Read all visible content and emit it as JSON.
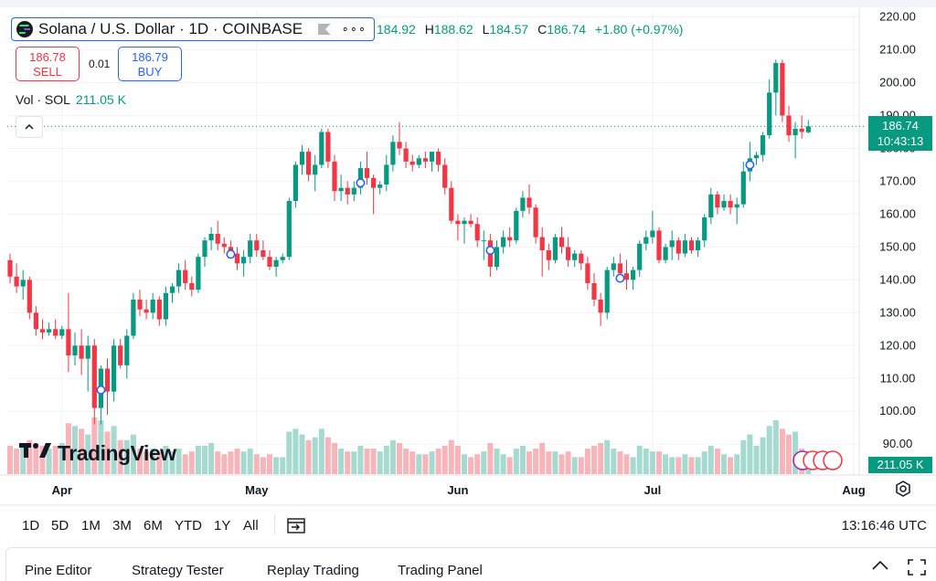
{
  "header": {
    "symbol_title": "Solana / U.S. Dollar · 1D · COINBASE",
    "more_label": "∘∘∘",
    "ohlc": {
      "o": "184.92",
      "h": "188.62",
      "l": "184.57",
      "c": "186.74",
      "change": "+1.80 (+0.97%)",
      "o_label": "",
      "h_label": "H",
      "l_label": "L",
      "c_label": "C"
    }
  },
  "trade": {
    "sell_price": "186.78",
    "sell_label": "SELL",
    "spread": "0.01",
    "buy_price": "186.79",
    "buy_label": "BUY"
  },
  "volume_legend": {
    "label": "Vol · SOL",
    "value": "211.05 K"
  },
  "price_tag": {
    "price": "186.74",
    "countdown": "10:43:13"
  },
  "volume_tag": "211.05 K",
  "brand": "TradingView",
  "range_buttons": [
    "1D",
    "5D",
    "1M",
    "3M",
    "6M",
    "YTD",
    "1Y",
    "All"
  ],
  "clock": "13:16:46 UTC",
  "bottom_tabs": [
    "Pine Editor",
    "Strategy Tester",
    "Replay Trading",
    "Trading Panel"
  ],
  "colors": {
    "up": "#089981",
    "down": "#f23645",
    "up_vol": "#a6d9cf",
    "down_vol": "#f7b5b9",
    "marker": "#2962ff"
  },
  "chart_data": {
    "type": "candlestick",
    "title": "Solana / U.S. Dollar · 1D · COINBASE",
    "ylim": [
      87,
      221
    ],
    "y_ticks": [
      90,
      100,
      110,
      120,
      130,
      140,
      150,
      160,
      170,
      180,
      190,
      200,
      210,
      220
    ],
    "y_tick_labels": [
      "90.00",
      "100.00",
      "110.00",
      "120.00",
      "130.00",
      "140.00",
      "150.00",
      "160.00",
      "170.00",
      "180.00",
      "190.00",
      "200.00",
      "210.00",
      "220.00"
    ],
    "x_axis_labels": [
      {
        "label": "Apr",
        "index": 8
      },
      {
        "label": "May",
        "index": 38
      },
      {
        "label": "Jun",
        "index": 69
      },
      {
        "label": "Jul",
        "index": 99
      },
      {
        "label": "Aug",
        "index": 130
      }
    ],
    "last_price": 186.74,
    "current_volume": "211.05 K",
    "event_markers": [
      {
        "index": 14,
        "price": 106.5
      },
      {
        "index": 34,
        "price": 147.8
      },
      {
        "index": 54,
        "price": 169.5
      },
      {
        "index": 74,
        "price": 149
      },
      {
        "index": 94,
        "price": 140.5
      },
      {
        "index": 114,
        "price": 175
      }
    ],
    "candles": [
      {
        "o": 146,
        "h": 148,
        "l": 139,
        "c": 141,
        "v": 0.5
      },
      {
        "o": 141,
        "h": 145,
        "l": 136,
        "c": 138,
        "v": 0.45
      },
      {
        "o": 138,
        "h": 143,
        "l": 134,
        "c": 140,
        "v": 0.5
      },
      {
        "o": 140,
        "h": 141,
        "l": 128,
        "c": 130,
        "v": 0.6
      },
      {
        "o": 130,
        "h": 132,
        "l": 123,
        "c": 125,
        "v": 0.55
      },
      {
        "o": 125,
        "h": 128,
        "l": 122,
        "c": 124,
        "v": 0.5
      },
      {
        "o": 124,
        "h": 127,
        "l": 123,
        "c": 125,
        "v": 0.45
      },
      {
        "o": 125,
        "h": 128,
        "l": 122,
        "c": 123,
        "v": 0.5
      },
      {
        "o": 123,
        "h": 126,
        "l": 122,
        "c": 125,
        "v": 0.55
      },
      {
        "o": 125,
        "h": 136,
        "l": 112,
        "c": 117,
        "v": 0.9
      },
      {
        "o": 117,
        "h": 124,
        "l": 114,
        "c": 120,
        "v": 0.85
      },
      {
        "o": 120,
        "h": 125,
        "l": 111,
        "c": 116,
        "v": 0.8
      },
      {
        "o": 116,
        "h": 123,
        "l": 106,
        "c": 120,
        "v": 0.7
      },
      {
        "o": 120,
        "h": 122,
        "l": 96,
        "c": 101,
        "v": 1.0
      },
      {
        "o": 101,
        "h": 114,
        "l": 96,
        "c": 113,
        "v": 0.95
      },
      {
        "o": 113,
        "h": 116,
        "l": 99,
        "c": 106,
        "v": 0.75
      },
      {
        "o": 106,
        "h": 122,
        "l": 103,
        "c": 120,
        "v": 0.85
      },
      {
        "o": 120,
        "h": 122,
        "l": 113,
        "c": 114,
        "v": 0.6
      },
      {
        "o": 114,
        "h": 125,
        "l": 110,
        "c": 123,
        "v": 0.6
      },
      {
        "o": 123,
        "h": 136,
        "l": 122,
        "c": 134,
        "v": 0.7
      },
      {
        "o": 134,
        "h": 137,
        "l": 129,
        "c": 131,
        "v": 0.45
      },
      {
        "o": 131,
        "h": 134,
        "l": 128,
        "c": 130,
        "v": 0.4
      },
      {
        "o": 130,
        "h": 136,
        "l": 128,
        "c": 134,
        "v": 0.45
      },
      {
        "o": 134,
        "h": 135,
        "l": 126,
        "c": 128,
        "v": 0.4
      },
      {
        "o": 128,
        "h": 138,
        "l": 126,
        "c": 136,
        "v": 0.5
      },
      {
        "o": 136,
        "h": 139,
        "l": 133,
        "c": 138,
        "v": 0.4
      },
      {
        "o": 138,
        "h": 145,
        "l": 136,
        "c": 143,
        "v": 0.45
      },
      {
        "o": 143,
        "h": 146,
        "l": 137,
        "c": 139,
        "v": 0.35
      },
      {
        "o": 139,
        "h": 141,
        "l": 135,
        "c": 137,
        "v": 0.4
      },
      {
        "o": 137,
        "h": 148,
        "l": 136,
        "c": 147,
        "v": 0.5
      },
      {
        "o": 147,
        "h": 153,
        "l": 144,
        "c": 152,
        "v": 0.5
      },
      {
        "o": 152,
        "h": 156,
        "l": 149,
        "c": 154,
        "v": 0.55
      },
      {
        "o": 154,
        "h": 158,
        "l": 149,
        "c": 151,
        "v": 0.4
      },
      {
        "o": 151,
        "h": 153,
        "l": 148,
        "c": 150,
        "v": 0.35
      },
      {
        "o": 150,
        "h": 152,
        "l": 147,
        "c": 148,
        "v": 0.4
      },
      {
        "o": 148,
        "h": 150,
        "l": 143,
        "c": 145,
        "v": 0.45
      },
      {
        "o": 145,
        "h": 149,
        "l": 141,
        "c": 147,
        "v": 0.4
      },
      {
        "o": 147,
        "h": 154,
        "l": 145,
        "c": 152,
        "v": 0.45
      },
      {
        "o": 152,
        "h": 154,
        "l": 147,
        "c": 149,
        "v": 0.35
      },
      {
        "o": 149,
        "h": 152,
        "l": 146,
        "c": 147,
        "v": 0.3
      },
      {
        "o": 147,
        "h": 149,
        "l": 143,
        "c": 144,
        "v": 0.35
      },
      {
        "o": 144,
        "h": 147,
        "l": 141,
        "c": 146,
        "v": 0.3
      },
      {
        "o": 146,
        "h": 148,
        "l": 145,
        "c": 147,
        "v": 0.3
      },
      {
        "o": 147,
        "h": 165,
        "l": 146,
        "c": 164,
        "v": 0.75
      },
      {
        "o": 164,
        "h": 176,
        "l": 162,
        "c": 175,
        "v": 0.8
      },
      {
        "o": 175,
        "h": 181,
        "l": 172,
        "c": 179,
        "v": 0.7
      },
      {
        "o": 179,
        "h": 180,
        "l": 170,
        "c": 172,
        "v": 0.6
      },
      {
        "o": 172,
        "h": 178,
        "l": 167,
        "c": 175,
        "v": 0.65
      },
      {
        "o": 175,
        "h": 186,
        "l": 174,
        "c": 185,
        "v": 0.8
      },
      {
        "o": 185,
        "h": 186,
        "l": 174,
        "c": 176,
        "v": 0.65
      },
      {
        "o": 176,
        "h": 178,
        "l": 164,
        "c": 167,
        "v": 0.55
      },
      {
        "o": 167,
        "h": 172,
        "l": 164,
        "c": 168,
        "v": 0.45
      },
      {
        "o": 168,
        "h": 170,
        "l": 163,
        "c": 166,
        "v": 0.4
      },
      {
        "o": 166,
        "h": 170,
        "l": 164,
        "c": 168,
        "v": 0.4
      },
      {
        "o": 168,
        "h": 176,
        "l": 166,
        "c": 174,
        "v": 0.5
      },
      {
        "o": 174,
        "h": 179,
        "l": 169,
        "c": 171,
        "v": 0.45
      },
      {
        "o": 171,
        "h": 172,
        "l": 160,
        "c": 168,
        "v": 0.45
      },
      {
        "o": 168,
        "h": 170,
        "l": 166,
        "c": 169,
        "v": 0.4
      },
      {
        "o": 169,
        "h": 178,
        "l": 167,
        "c": 175,
        "v": 0.5
      },
      {
        "o": 175,
        "h": 184,
        "l": 173,
        "c": 182,
        "v": 0.6
      },
      {
        "o": 182,
        "h": 188,
        "l": 178,
        "c": 180,
        "v": 0.55
      },
      {
        "o": 180,
        "h": 182,
        "l": 174,
        "c": 176,
        "v": 0.45
      },
      {
        "o": 176,
        "h": 178,
        "l": 173,
        "c": 175,
        "v": 0.4
      },
      {
        "o": 175,
        "h": 178,
        "l": 174,
        "c": 177,
        "v": 0.35
      },
      {
        "o": 177,
        "h": 179,
        "l": 174,
        "c": 176,
        "v": 0.35
      },
      {
        "o": 176,
        "h": 179,
        "l": 173,
        "c": 179,
        "v": 0.4
      },
      {
        "o": 179,
        "h": 180,
        "l": 173,
        "c": 175,
        "v": 0.45
      },
      {
        "o": 175,
        "h": 177,
        "l": 166,
        "c": 168,
        "v": 0.5
      },
      {
        "o": 168,
        "h": 170,
        "l": 157,
        "c": 158,
        "v": 0.6
      },
      {
        "o": 158,
        "h": 160,
        "l": 152,
        "c": 157,
        "v": 0.5
      },
      {
        "o": 157,
        "h": 159,
        "l": 151,
        "c": 158,
        "v": 0.35
      },
      {
        "o": 158,
        "h": 160,
        "l": 156,
        "c": 157,
        "v": 0.3
      },
      {
        "o": 157,
        "h": 159,
        "l": 150,
        "c": 152,
        "v": 0.35
      },
      {
        "o": 152,
        "h": 155,
        "l": 146,
        "c": 152,
        "v": 0.4
      },
      {
        "o": 152,
        "h": 154,
        "l": 141,
        "c": 144,
        "v": 0.55
      },
      {
        "o": 144,
        "h": 152,
        "l": 143,
        "c": 150,
        "v": 0.45
      },
      {
        "o": 150,
        "h": 155,
        "l": 148,
        "c": 153,
        "v": 0.35
      },
      {
        "o": 153,
        "h": 156,
        "l": 150,
        "c": 152,
        "v": 0.3
      },
      {
        "o": 152,
        "h": 162,
        "l": 151,
        "c": 161,
        "v": 0.45
      },
      {
        "o": 161,
        "h": 167,
        "l": 159,
        "c": 165,
        "v": 0.5
      },
      {
        "o": 165,
        "h": 169,
        "l": 160,
        "c": 162,
        "v": 0.4
      },
      {
        "o": 162,
        "h": 163,
        "l": 151,
        "c": 153,
        "v": 0.45
      },
      {
        "o": 153,
        "h": 156,
        "l": 141,
        "c": 149,
        "v": 0.55
      },
      {
        "o": 149,
        "h": 151,
        "l": 143,
        "c": 146,
        "v": 0.4
      },
      {
        "o": 146,
        "h": 154,
        "l": 145,
        "c": 153,
        "v": 0.4
      },
      {
        "o": 153,
        "h": 156,
        "l": 148,
        "c": 150,
        "v": 0.35
      },
      {
        "o": 150,
        "h": 153,
        "l": 144,
        "c": 146,
        "v": 0.4
      },
      {
        "o": 146,
        "h": 149,
        "l": 144,
        "c": 148,
        "v": 0.3
      },
      {
        "o": 148,
        "h": 149,
        "l": 143,
        "c": 145,
        "v": 0.3
      },
      {
        "o": 145,
        "h": 147,
        "l": 137,
        "c": 139,
        "v": 0.45
      },
      {
        "o": 139,
        "h": 142,
        "l": 132,
        "c": 134,
        "v": 0.5
      },
      {
        "o": 134,
        "h": 136,
        "l": 126,
        "c": 130,
        "v": 0.55
      },
      {
        "o": 130,
        "h": 144,
        "l": 128,
        "c": 143,
        "v": 0.6
      },
      {
        "o": 143,
        "h": 147,
        "l": 141,
        "c": 145,
        "v": 0.45
      },
      {
        "o": 145,
        "h": 148,
        "l": 140,
        "c": 142,
        "v": 0.4
      },
      {
        "o": 142,
        "h": 146,
        "l": 137,
        "c": 140,
        "v": 0.35
      },
      {
        "o": 140,
        "h": 144,
        "l": 137,
        "c": 143,
        "v": 0.3
      },
      {
        "o": 143,
        "h": 152,
        "l": 141,
        "c": 151,
        "v": 0.5
      },
      {
        "o": 151,
        "h": 155,
        "l": 149,
        "c": 153,
        "v": 0.45
      },
      {
        "o": 153,
        "h": 161,
        "l": 151,
        "c": 155,
        "v": 0.4
      },
      {
        "o": 155,
        "h": 156,
        "l": 145,
        "c": 146,
        "v": 0.4
      },
      {
        "o": 146,
        "h": 151,
        "l": 145,
        "c": 150,
        "v": 0.35
      },
      {
        "o": 150,
        "h": 155,
        "l": 146,
        "c": 152,
        "v": 0.3
      },
      {
        "o": 152,
        "h": 153,
        "l": 146,
        "c": 148,
        "v": 0.3
      },
      {
        "o": 148,
        "h": 154,
        "l": 147,
        "c": 152,
        "v": 0.35
      },
      {
        "o": 152,
        "h": 153,
        "l": 148,
        "c": 149,
        "v": 0.3
      },
      {
        "o": 149,
        "h": 153,
        "l": 147,
        "c": 152,
        "v": 0.3
      },
      {
        "o": 152,
        "h": 160,
        "l": 150,
        "c": 159,
        "v": 0.4
      },
      {
        "o": 159,
        "h": 168,
        "l": 157,
        "c": 166,
        "v": 0.5
      },
      {
        "o": 166,
        "h": 167,
        "l": 160,
        "c": 162,
        "v": 0.45
      },
      {
        "o": 162,
        "h": 166,
        "l": 161,
        "c": 164,
        "v": 0.35
      },
      {
        "o": 164,
        "h": 166,
        "l": 160,
        "c": 162,
        "v": 0.3
      },
      {
        "o": 162,
        "h": 165,
        "l": 157,
        "c": 163,
        "v": 0.35
      },
      {
        "o": 163,
        "h": 176,
        "l": 162,
        "c": 173,
        "v": 0.6
      },
      {
        "o": 173,
        "h": 182,
        "l": 170,
        "c": 177,
        "v": 0.7
      },
      {
        "o": 177,
        "h": 179,
        "l": 175,
        "c": 178,
        "v": 0.5
      },
      {
        "o": 178,
        "h": 185,
        "l": 176,
        "c": 184,
        "v": 0.65
      },
      {
        "o": 184,
        "h": 201,
        "l": 183,
        "c": 197,
        "v": 0.85
      },
      {
        "o": 197,
        "h": 207,
        "l": 190,
        "c": 206,
        "v": 0.95
      },
      {
        "o": 206,
        "h": 207,
        "l": 188,
        "c": 190,
        "v": 0.8
      },
      {
        "o": 190,
        "h": 193,
        "l": 182,
        "c": 184,
        "v": 0.7
      },
      {
        "o": 184,
        "h": 188,
        "l": 177,
        "c": 186,
        "v": 0.75
      },
      {
        "o": 186,
        "h": 190,
        "l": 183,
        "c": 185,
        "v": 0.45
      },
      {
        "o": 184.92,
        "h": 188.62,
        "l": 184.57,
        "c": 186.74,
        "v": 0.4
      }
    ]
  }
}
